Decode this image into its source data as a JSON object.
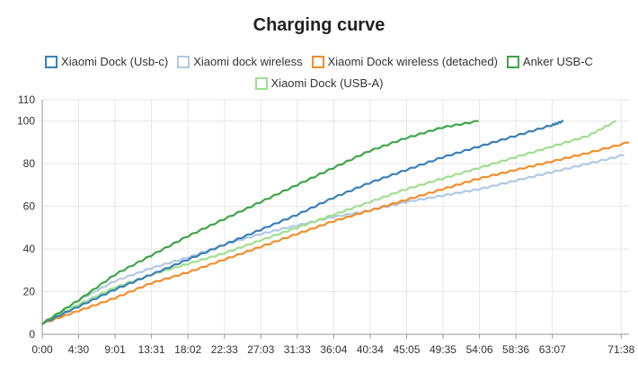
{
  "chart_data": {
    "type": "line",
    "title": "Charging curve",
    "xlabel": "",
    "ylabel": "",
    "x_tick_labels": [
      "0:00",
      "4:30",
      "9:01",
      "13:31",
      "18:02",
      "22:33",
      "27:03",
      "31:33",
      "36:04",
      "40:34",
      "45:05",
      "49:35",
      "54:06",
      "58:36",
      "63:07",
      "71:38"
    ],
    "x_tick_minutes": [
      0,
      4.5,
      9.017,
      13.517,
      18.033,
      22.55,
      27.05,
      31.55,
      36.067,
      40.567,
      45.083,
      49.583,
      54.1,
      58.6,
      63.117,
      71.633
    ],
    "xlim": [
      0,
      72.6
    ],
    "y_ticks": [
      0,
      20,
      40,
      60,
      80,
      100,
      110
    ],
    "ylim": [
      0,
      110
    ],
    "grid": true,
    "legend_position": "top",
    "series": [
      {
        "name": "Xiaomi Dock (Usb-c)",
        "color": "#3a80b8",
        "x": [
          0,
          4.5,
          9,
          13.5,
          18,
          22.5,
          27,
          31.5,
          36,
          40.5,
          45,
          49.5,
          54,
          58.5,
          63,
          64.5
        ],
        "y": [
          5,
          13,
          21,
          28,
          35,
          42,
          49,
          56,
          64,
          71,
          77,
          83,
          88,
          93,
          98,
          100
        ]
      },
      {
        "name": "Xiaomi dock wireless",
        "color": "#b1c9e3",
        "x": [
          0,
          4.5,
          9,
          13.5,
          18,
          22.5,
          27,
          31.5,
          36,
          40.5,
          45,
          49.5,
          54,
          58.5,
          63,
          67.5,
          72
        ],
        "y": [
          5,
          16,
          25,
          31,
          36,
          42,
          47,
          51,
          55,
          58,
          62,
          65,
          68,
          72,
          76,
          80,
          84
        ]
      },
      {
        "name": "Xiaomi Dock wireless (detached)",
        "color": "#f28e2b",
        "x": [
          0,
          4.5,
          9,
          13.5,
          18,
          22.5,
          27,
          31.5,
          36,
          40.5,
          45,
          49.5,
          54,
          58.5,
          63,
          67.5,
          72.6
        ],
        "y": [
          5,
          11,
          17,
          24,
          29,
          35,
          41,
          47,
          53,
          58,
          63,
          68,
          73,
          77,
          81,
          85,
          90
        ]
      },
      {
        "name": "Anker USB-C",
        "color": "#3ea548",
        "x": [
          0,
          4.5,
          9,
          13.5,
          18,
          22.5,
          27,
          31.5,
          36,
          40.5,
          45,
          49.5,
          54
        ],
        "y": [
          5,
          16,
          28,
          37,
          46,
          54,
          62,
          70,
          78,
          86,
          92,
          97,
          100
        ]
      },
      {
        "name": "Xiaomi Dock (USB-A)",
        "color": "#9fdf8f",
        "x": [
          0,
          4.5,
          9,
          13.5,
          18,
          22.5,
          27,
          31.5,
          36,
          40.5,
          45,
          49.5,
          54,
          58.5,
          63,
          67.5,
          71
        ],
        "y": [
          5,
          14,
          22,
          28,
          33,
          38,
          44,
          50,
          56,
          62,
          68,
          73,
          78,
          83,
          88,
          93,
          100
        ]
      }
    ]
  }
}
